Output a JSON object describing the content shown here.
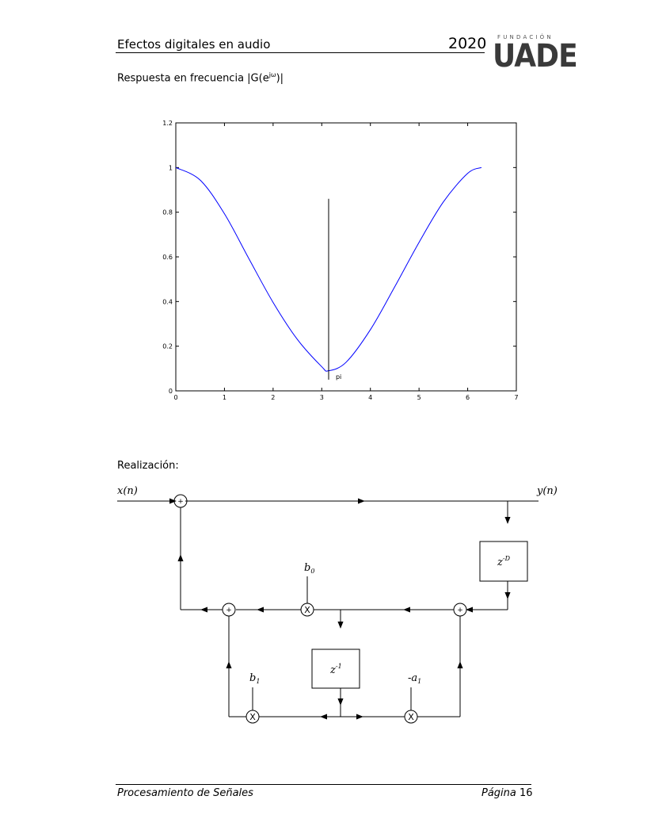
{
  "header": {
    "title": "Efectos digitales en audio",
    "year": "2020",
    "logo_top": "FUNDACIÓN",
    "logo_main": "UADE"
  },
  "section": {
    "freq_heading_prefix": "Respuesta en frecuencia |G(e",
    "freq_heading_sup": "jω",
    "freq_heading_suffix": ")|",
    "realization_heading": "Realización:"
  },
  "chart_data": {
    "type": "line",
    "xlim": [
      0,
      7
    ],
    "ylim": [
      0,
      1.2
    ],
    "x_ticks": [
      "0",
      "1",
      "2",
      "3",
      "4",
      "5",
      "6",
      "7"
    ],
    "y_ticks": [
      "0",
      "0.2",
      "0.4",
      "0.6",
      "0.8",
      "1",
      "1.2"
    ],
    "series": [
      {
        "color": "#0000ff",
        "x": [
          0,
          0.5,
          1.0,
          1.5,
          2.0,
          2.5,
          3.0,
          3.1416,
          3.5,
          4.0,
          4.5,
          5.0,
          5.5,
          6.0,
          6.2832
        ],
        "y": [
          1.0,
          0.944,
          0.793,
          0.593,
          0.396,
          0.23,
          0.108,
          0.09,
          0.128,
          0.274,
          0.466,
          0.665,
          0.846,
          0.974,
          1.0
        ]
      }
    ],
    "marker": {
      "x": 3.1416,
      "y_top": 0.86,
      "y_bottom": 0.05,
      "label": "pi",
      "color": "#000000"
    },
    "grid": false
  },
  "diagram": {
    "input_label": "x(n)",
    "output_label": "y(n)",
    "delay_main": "z",
    "delay_main_exp": "-D",
    "delay_unit": "z",
    "delay_unit_exp": "-1",
    "coef_b0": "b",
    "coef_b0_sub": "0",
    "coef_b1": "b",
    "coef_b1_sub": "1",
    "coef_a1": "-a",
    "coef_a1_sub": "1",
    "sum_symbol": "+",
    "mult_symbol": "X"
  },
  "footer": {
    "left": "Procesamiento de Señales",
    "right_word": "Página",
    "page_number": "16"
  }
}
